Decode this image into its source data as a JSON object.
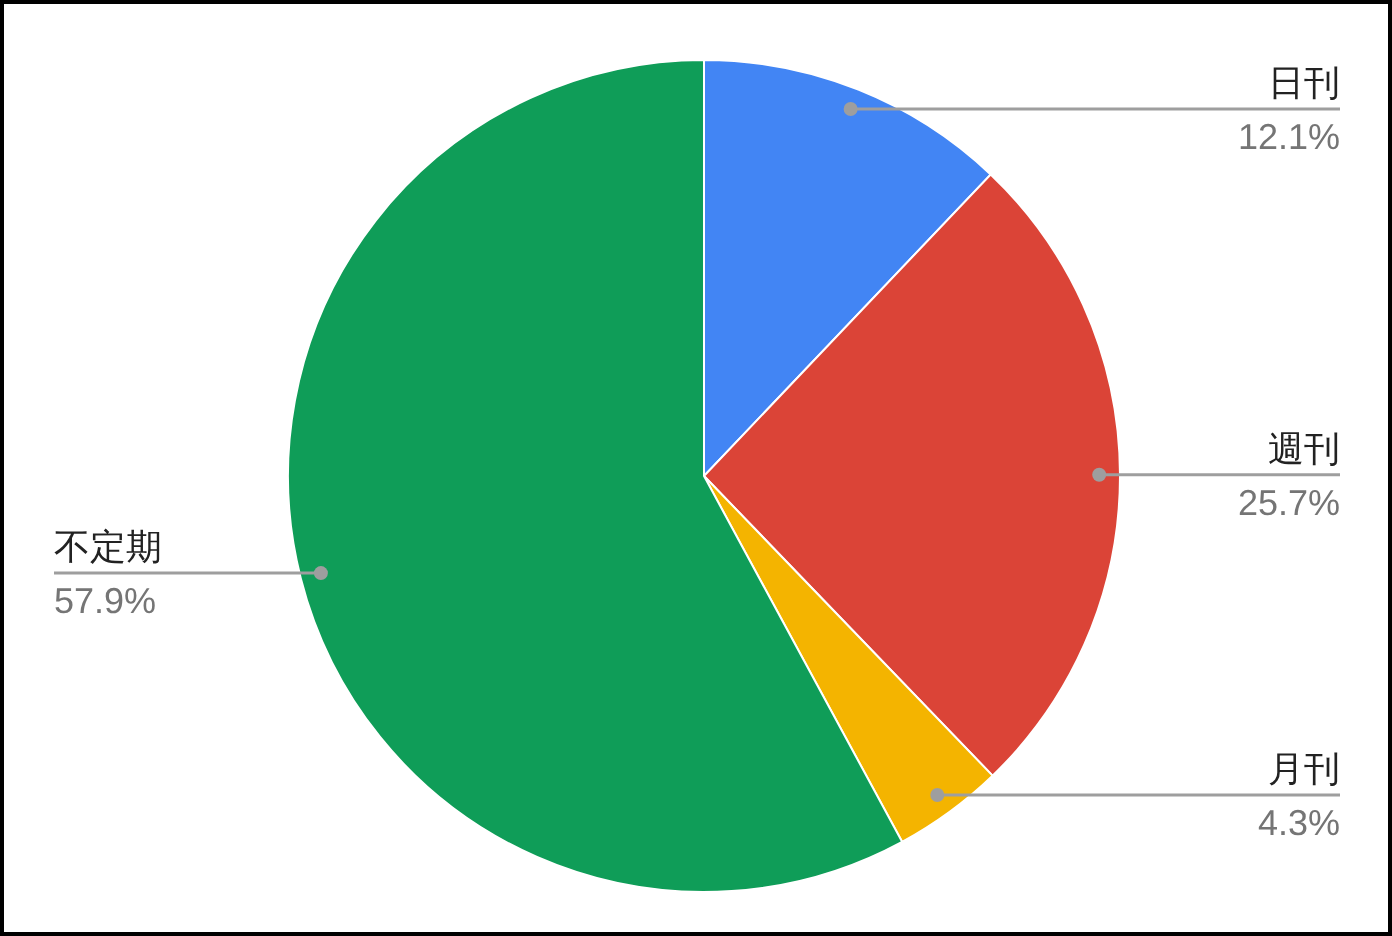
{
  "chart_data": {
    "type": "pie",
    "categories": [
      "日刊",
      "週刊",
      "月刊",
      "不定期"
    ],
    "values": [
      12.1,
      25.7,
      4.3,
      57.9
    ],
    "colors": [
      "#4285f4",
      "#db4437",
      "#f4b400",
      "#0f9d58"
    ],
    "value_labels": [
      "12.1%",
      "25.7%",
      "4.3%",
      "57.9%"
    ]
  }
}
